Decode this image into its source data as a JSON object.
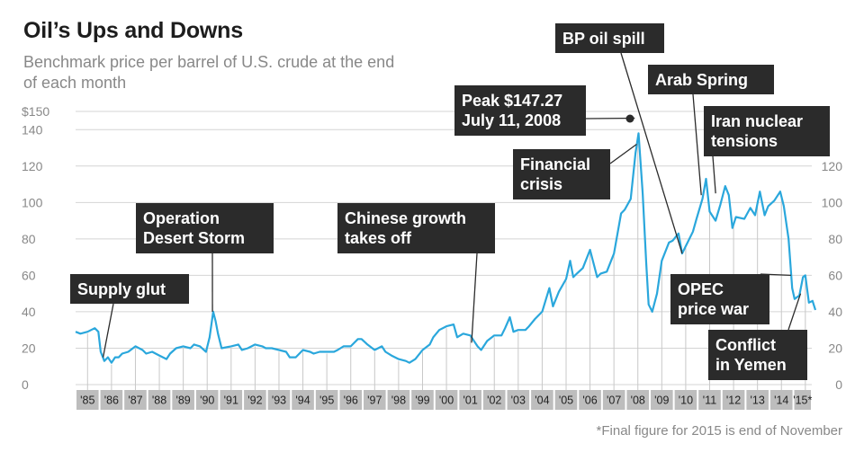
{
  "header": {
    "title": "Oil’s Ups and Downs",
    "subtitle": "Benchmark price per barrel of U.S. crude at the end of each month"
  },
  "footnote": "*Final figure for 2015 is end of November",
  "chart_data": {
    "type": "line",
    "title": "Oil’s Ups and Downs",
    "subtitle": "Benchmark price per barrel of U.S. crude at the end of each month",
    "x_range": [
      1985,
      2015.92
    ],
    "ylim": [
      0,
      150
    ],
    "left_axis_ticks": [
      "$150",
      "140",
      "120",
      "100",
      "80",
      "60",
      "40",
      "20",
      "0"
    ],
    "left_axis_values": [
      150,
      140,
      120,
      100,
      80,
      60,
      40,
      20,
      0
    ],
    "right_axis_ticks": [
      "120",
      "100",
      "80",
      "60",
      "40",
      "20",
      "0"
    ],
    "right_axis_values": [
      120,
      100,
      80,
      60,
      40,
      20,
      0
    ],
    "year_labels": [
      "'85",
      "'86",
      "'87",
      "'88",
      "'89",
      "'90",
      "'91",
      "'92",
      "'93",
      "'94",
      "'95",
      "'96",
      "'97",
      "'98",
      "'99",
      "'00",
      "'01",
      "'02",
      "'03",
      "'04",
      "'05",
      "'06",
      "'07",
      "'08",
      "'09",
      "'10",
      "'11",
      "'12",
      "'13",
      "'14",
      "'15*"
    ],
    "grid": true,
    "line_color": "#2aa7dc",
    "series": [
      {
        "points": [
          [
            1985.0,
            29
          ],
          [
            1985.2,
            28
          ],
          [
            1985.5,
            29
          ],
          [
            1985.8,
            31
          ],
          [
            1985.95,
            29
          ],
          [
            1986.05,
            18
          ],
          [
            1986.2,
            13
          ],
          [
            1986.35,
            15
          ],
          [
            1986.5,
            12
          ],
          [
            1986.65,
            15
          ],
          [
            1986.8,
            15
          ],
          [
            1986.95,
            17
          ],
          [
            1987.2,
            18
          ],
          [
            1987.5,
            21
          ],
          [
            1987.8,
            19
          ],
          [
            1987.95,
            17
          ],
          [
            1988.2,
            18
          ],
          [
            1988.5,
            16
          ],
          [
            1988.8,
            14
          ],
          [
            1988.95,
            17
          ],
          [
            1989.2,
            20
          ],
          [
            1989.5,
            21
          ],
          [
            1989.8,
            20
          ],
          [
            1989.95,
            22
          ],
          [
            1990.2,
            21
          ],
          [
            1990.45,
            18
          ],
          [
            1990.6,
            26
          ],
          [
            1990.75,
            40
          ],
          [
            1990.85,
            35
          ],
          [
            1990.95,
            28
          ],
          [
            1991.1,
            20
          ],
          [
            1991.5,
            21
          ],
          [
            1991.8,
            22
          ],
          [
            1991.95,
            19
          ],
          [
            1992.2,
            20
          ],
          [
            1992.5,
            22
          ],
          [
            1992.8,
            21
          ],
          [
            1992.95,
            20
          ],
          [
            1993.2,
            20
          ],
          [
            1993.5,
            19
          ],
          [
            1993.8,
            18
          ],
          [
            1993.95,
            15
          ],
          [
            1994.2,
            15
          ],
          [
            1994.5,
            19
          ],
          [
            1994.8,
            18
          ],
          [
            1994.95,
            17
          ],
          [
            1995.2,
            18
          ],
          [
            1995.5,
            18
          ],
          [
            1995.8,
            18
          ],
          [
            1995.95,
            19
          ],
          [
            1996.2,
            21
          ],
          [
            1996.5,
            21
          ],
          [
            1996.8,
            25
          ],
          [
            1996.95,
            25
          ],
          [
            1997.2,
            22
          ],
          [
            1997.5,
            19
          ],
          [
            1997.8,
            21
          ],
          [
            1997.95,
            18
          ],
          [
            1998.2,
            16
          ],
          [
            1998.5,
            14
          ],
          [
            1998.8,
            13
          ],
          [
            1998.95,
            12
          ],
          [
            1999.2,
            14
          ],
          [
            1999.5,
            19
          ],
          [
            1999.8,
            22
          ],
          [
            1999.95,
            26
          ],
          [
            2000.2,
            30
          ],
          [
            2000.5,
            32
          ],
          [
            2000.8,
            33
          ],
          [
            2000.95,
            26
          ],
          [
            2001.2,
            28
          ],
          [
            2001.5,
            27
          ],
          [
            2001.8,
            21
          ],
          [
            2001.95,
            19
          ],
          [
            2002.2,
            24
          ],
          [
            2002.5,
            27
          ],
          [
            2002.8,
            27
          ],
          [
            2002.95,
            31
          ],
          [
            2003.15,
            37
          ],
          [
            2003.3,
            29
          ],
          [
            2003.5,
            30
          ],
          [
            2003.8,
            30
          ],
          [
            2003.95,
            32
          ],
          [
            2004.2,
            36
          ],
          [
            2004.5,
            40
          ],
          [
            2004.8,
            53
          ],
          [
            2004.95,
            43
          ],
          [
            2005.2,
            51
          ],
          [
            2005.5,
            58
          ],
          [
            2005.67,
            68
          ],
          [
            2005.8,
            59
          ],
          [
            2005.95,
            61
          ],
          [
            2006.2,
            64
          ],
          [
            2006.5,
            74
          ],
          [
            2006.8,
            59
          ],
          [
            2006.95,
            61
          ],
          [
            2007.2,
            62
          ],
          [
            2007.5,
            72
          ],
          [
            2007.8,
            94
          ],
          [
            2007.95,
            96
          ],
          [
            2008.2,
            102
          ],
          [
            2008.4,
            127
          ],
          [
            2008.53,
            138
          ],
          [
            2008.7,
            105
          ],
          [
            2008.85,
            67
          ],
          [
            2008.95,
            44
          ],
          [
            2009.1,
            40
          ],
          [
            2009.3,
            50
          ],
          [
            2009.5,
            68
          ],
          [
            2009.8,
            78
          ],
          [
            2009.95,
            79
          ],
          [
            2010.2,
            83
          ],
          [
            2010.35,
            72
          ],
          [
            2010.5,
            76
          ],
          [
            2010.8,
            84
          ],
          [
            2010.95,
            91
          ],
          [
            2011.2,
            102
          ],
          [
            2011.35,
            113
          ],
          [
            2011.5,
            95
          ],
          [
            2011.75,
            90
          ],
          [
            2011.95,
            99
          ],
          [
            2012.15,
            109
          ],
          [
            2012.3,
            104
          ],
          [
            2012.45,
            86
          ],
          [
            2012.6,
            92
          ],
          [
            2012.95,
            91
          ],
          [
            2013.2,
            97
          ],
          [
            2013.4,
            93
          ],
          [
            2013.6,
            106
          ],
          [
            2013.8,
            93
          ],
          [
            2013.95,
            98
          ],
          [
            2014.2,
            101
          ],
          [
            2014.45,
            106
          ],
          [
            2014.6,
            98
          ],
          [
            2014.8,
            80
          ],
          [
            2014.95,
            53
          ],
          [
            2015.05,
            47
          ],
          [
            2015.25,
            49
          ],
          [
            2015.4,
            59
          ],
          [
            2015.5,
            60
          ],
          [
            2015.65,
            45
          ],
          [
            2015.8,
            46
          ],
          [
            2015.92,
            41
          ]
        ]
      }
    ],
    "annotations": [
      {
        "id": "supply-glut",
        "lines": [
          "Supply glut"
        ],
        "target": [
          1986.15,
          15
        ]
      },
      {
        "id": "operation-desert-storm",
        "lines": [
          "Operation",
          "Desert Storm"
        ],
        "target": [
          1990.72,
          40
        ]
      },
      {
        "id": "chinese-growth",
        "lines": [
          "Chinese growth",
          "takes off"
        ],
        "target": [
          2001.55,
          23
        ]
      },
      {
        "id": "financial-crisis",
        "lines": [
          "Financial",
          "crisis"
        ],
        "target": [
          2008.45,
          132
        ]
      },
      {
        "id": "peak",
        "lines": [
          "Peak $147.27",
          "July 11, 2008"
        ],
        "target": [
          2008.52,
          147.27
        ]
      },
      {
        "id": "bp-oil-spill",
        "lines": [
          "BP oil spill"
        ],
        "target": [
          2010.35,
          72
        ]
      },
      {
        "id": "arab-spring",
        "lines": [
          "Arab Spring"
        ],
        "target": [
          2011.15,
          104
        ]
      },
      {
        "id": "iran-nuclear",
        "lines": [
          "Iran nuclear",
          "tensions"
        ],
        "target": [
          2011.75,
          105
        ]
      },
      {
        "id": "opec-price-war",
        "lines": [
          "OPEC",
          "price war"
        ],
        "target": [
          2014.9,
          60
        ]
      },
      {
        "id": "conflict-yemen",
        "lines": [
          "Conflict",
          "in Yemen"
        ],
        "target": [
          2015.3,
          50
        ]
      }
    ]
  }
}
